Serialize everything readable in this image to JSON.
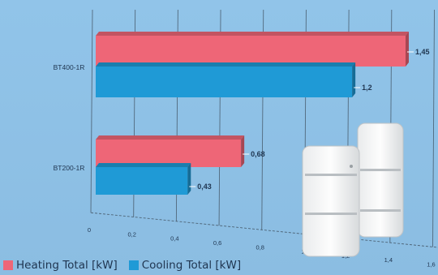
{
  "chart_data": {
    "type": "bar",
    "orientation": "horizontal",
    "categories": [
      "BT400-1R",
      "BT200-1R"
    ],
    "series": [
      {
        "name": "Heating Total [kW]",
        "values": [
          1.45,
          0.68
        ],
        "color": "#ee6677"
      },
      {
        "name": "Cooling Total [kW]",
        "values": [
          1.2,
          0.43
        ],
        "color": "#1f9ad6"
      }
    ],
    "value_labels": [
      [
        "1,45",
        "1,2"
      ],
      [
        "0,68",
        "0,43"
      ]
    ],
    "x_ticks": [
      0,
      0.2,
      0.4,
      0.6,
      0.8,
      1,
      1.2,
      1.4,
      1.6
    ],
    "x_tick_labels": [
      "0",
      "0,2",
      "0,4",
      "0,6",
      "0,8",
      "1",
      "1,2",
      "1,4",
      "1,6"
    ],
    "xlim": [
      0,
      1.6
    ],
    "grid": true,
    "legend_position": "bottom-left",
    "title": "",
    "xlabel": "",
    "ylabel": ""
  }
}
